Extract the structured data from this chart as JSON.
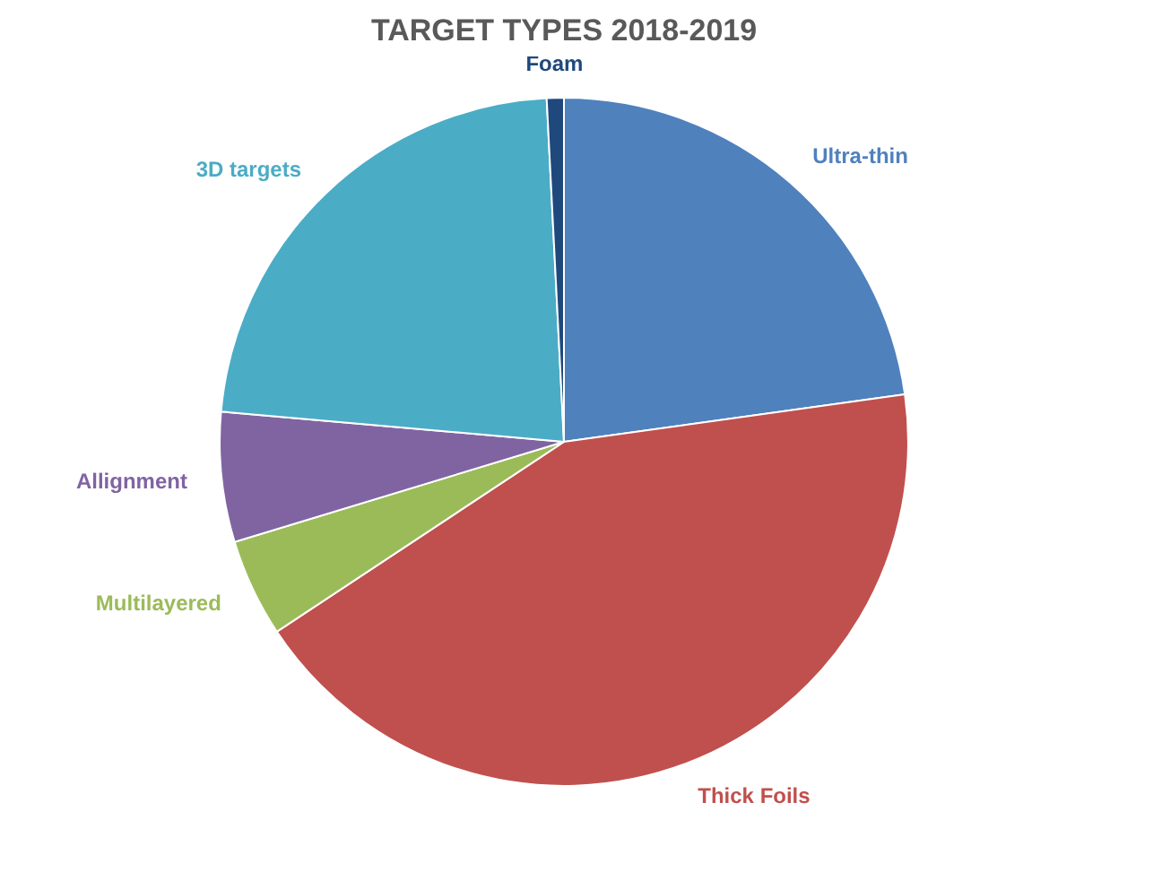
{
  "chart_data": {
    "type": "pie",
    "title": "TARGET TYPES 2018-2019",
    "categories": [
      "Ultra-thin",
      "Thick Foils",
      "Multilayered",
      "Allignment",
      "3D targets",
      "Foam"
    ],
    "values": [
      22.8,
      42.9,
      4.6,
      6.1,
      22.8,
      0.8
    ],
    "colors": [
      "#4f81bd",
      "#c0504d",
      "#9bbb59",
      "#8064a2",
      "#4bacc6",
      "#1f497d"
    ]
  }
}
